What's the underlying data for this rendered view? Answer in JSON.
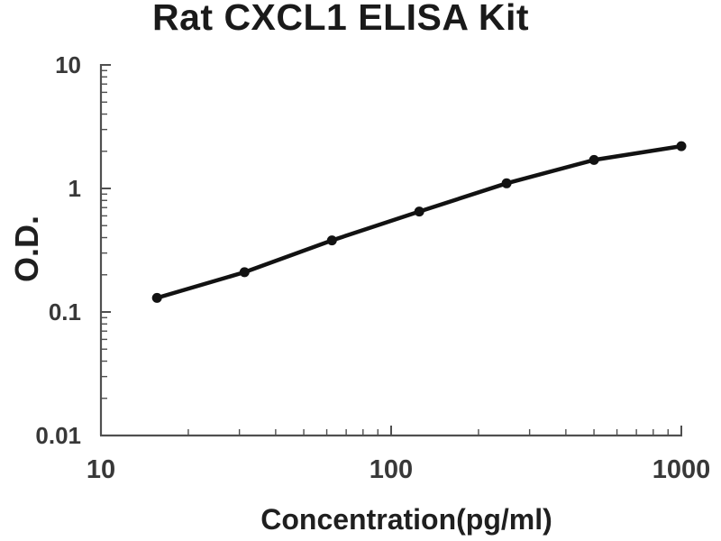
{
  "figure": {
    "title": "Rat CXCL1 ELISA Kit",
    "x_axis_title": "Concentration(pg/ml)",
    "y_axis_title": "O.D."
  },
  "chart_data": {
    "type": "line",
    "title": "Rat CXCL1 ELISA Kit",
    "xlabel": "Concentration(pg/ml)",
    "ylabel": "O.D.",
    "x_scale": "log",
    "y_scale": "log",
    "xlim": [
      10,
      1000
    ],
    "ylim": [
      0.01,
      10
    ],
    "grid": false,
    "legend": false,
    "x_ticks": [
      {
        "value": 10,
        "label": "10"
      },
      {
        "value": 100,
        "label": "100"
      },
      {
        "value": 1000,
        "label": "1000"
      }
    ],
    "y_ticks": [
      {
        "value": 10,
        "label": "10"
      },
      {
        "value": 1,
        "label": "1"
      },
      {
        "value": 0.1,
        "label": "0.1"
      },
      {
        "value": 0.01,
        "label": "0.01"
      }
    ],
    "series": [
      {
        "marker": "circle",
        "color": "#121212",
        "x": [
          15.6,
          31.25,
          62.5,
          125,
          250,
          500,
          1000
        ],
        "y": [
          0.13,
          0.21,
          0.38,
          0.65,
          1.1,
          1.7,
          2.2
        ]
      }
    ]
  },
  "colors": {
    "background": "#ffffff",
    "axis": "#4f4f4f",
    "tick": "#4f4f4f",
    "tick_label": "#383838",
    "curve": "#121212",
    "title": "#1a1a1a"
  }
}
